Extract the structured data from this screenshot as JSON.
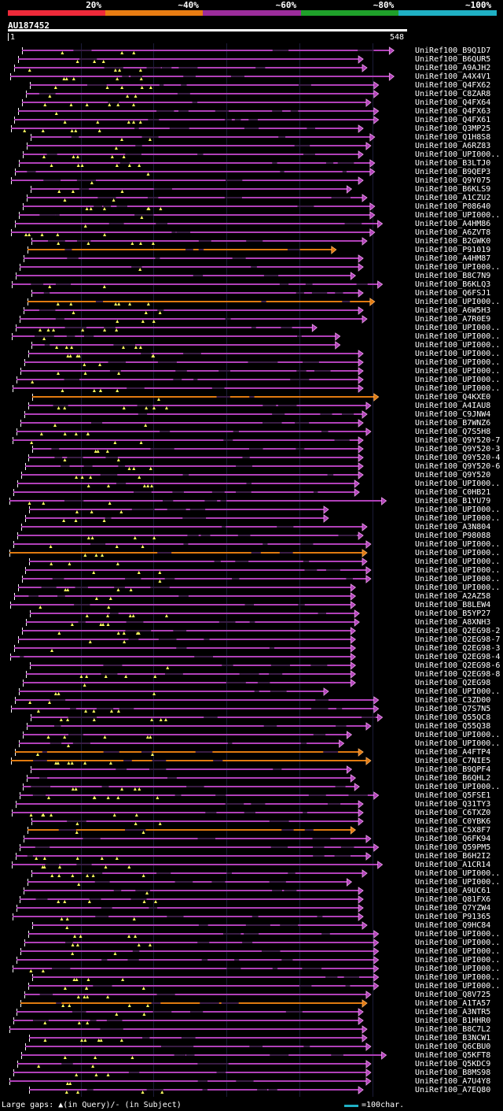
{
  "colors": {
    "orange_hit": "#e07a10",
    "purple_hit": "#b040b8",
    "dark_gap": "#3a1c44",
    "gap_marker": "#ffff60"
  },
  "scale": {
    "segments": [
      {
        "label": "20%",
        "color": "#ee2a3a"
      },
      {
        "label": "~40%",
        "color": "#e87c12"
      },
      {
        "label": "~60%",
        "color": "#9b2c9b"
      },
      {
        "label": "~80%",
        "color": "#1fa02a"
      },
      {
        "label": "~100%",
        "color": "#1fb0c4"
      }
    ]
  },
  "query": {
    "id": "AU187452",
    "start": "1",
    "end": "548",
    "length": 548
  },
  "footer": {
    "legend": "Large gaps: ▲(in Query)/- (in Subject)",
    "scale_label": "=100char."
  },
  "hits": [
    {
      "label": "UniRef100_B9Q1D7",
      "end": 0.99,
      "c": "p"
    },
    {
      "label": "UniRef100_B6QUR5",
      "end": 0.91,
      "c": "p"
    },
    {
      "label": "UniRef100_A9AJH2",
      "end": 0.92,
      "c": "p"
    },
    {
      "label": "UniRef100_A4X4V1",
      "end": 0.99,
      "c": "p"
    },
    {
      "label": "UniRef100_Q4FX62",
      "end": 0.95,
      "c": "p"
    },
    {
      "label": "UniRef100_C8ZAR8",
      "end": 0.95,
      "c": "p"
    },
    {
      "label": "UniRef100_Q4FX64",
      "end": 0.93,
      "c": "p"
    },
    {
      "label": "UniRef100_Q4FX63",
      "end": 0.95,
      "c": "p"
    },
    {
      "label": "UniRef100_Q4FX61",
      "end": 0.95,
      "c": "p"
    },
    {
      "label": "UniRef100_Q3MP25",
      "end": 0.91,
      "c": "p"
    },
    {
      "label": "UniRef100_Q1H8S8",
      "end": 0.94,
      "c": "p"
    },
    {
      "label": "UniRef100_A6RZ83",
      "end": 0.93,
      "c": "p"
    },
    {
      "label": "UniRef100_UPI000..",
      "end": 0.91,
      "c": "p"
    },
    {
      "label": "UniRef100_B3LTJ0",
      "end": 0.94,
      "c": "p"
    },
    {
      "label": "UniRef100_B9QEP3",
      "end": 0.94,
      "c": "p"
    },
    {
      "label": "UniRef100_Q9Y075",
      "end": 0.91,
      "c": "p"
    },
    {
      "label": "UniRef100_B6KLS9",
      "end": 0.88,
      "c": "p"
    },
    {
      "label": "UniRef100_A1CZU2",
      "end": 0.92,
      "c": "p"
    },
    {
      "label": "UniRef100_P08640",
      "end": 0.94,
      "c": "p"
    },
    {
      "label": "UniRef100_UPI000..",
      "end": 0.94,
      "c": "p"
    },
    {
      "label": "UniRef100_A4HM86",
      "end": 0.96,
      "c": "p"
    },
    {
      "label": "UniRef100_A6ZVT8",
      "end": 0.94,
      "c": "p"
    },
    {
      "label": "UniRef100_B2GWK0",
      "end": 0.92,
      "c": "p"
    },
    {
      "label": "UniRef100_P91019",
      "end": 0.84,
      "c": "o"
    },
    {
      "label": "UniRef100_A4HM87",
      "end": 0.91,
      "c": "p"
    },
    {
      "label": "UniRef100_UPI000..",
      "end": 0.91,
      "c": "p"
    },
    {
      "label": "UniRef100_B8C7N9",
      "end": 0.89,
      "c": "p"
    },
    {
      "label": "UniRef100_B6KLQ3",
      "end": 0.96,
      "c": "p"
    },
    {
      "label": "UniRef100_Q6FSJ1",
      "end": 0.91,
      "c": "p"
    },
    {
      "label": "UniRef100_UPI000..",
      "end": 0.94,
      "c": "o"
    },
    {
      "label": "UniRef100_A6W5H3",
      "end": 0.91,
      "c": "p"
    },
    {
      "label": "UniRef100_A7R0E9",
      "end": 0.92,
      "c": "p"
    },
    {
      "label": "UniRef100_UPI000..",
      "end": 0.79,
      "c": "p"
    },
    {
      "label": "UniRef100_UPI000..",
      "end": 0.85,
      "c": "p"
    },
    {
      "label": "UniRef100_UPI000..",
      "end": 0.85,
      "c": "p"
    },
    {
      "label": "UniRef100_UPI000..",
      "end": 0.91,
      "c": "p"
    },
    {
      "label": "UniRef100_UPI000..",
      "end": 0.91,
      "c": "p"
    },
    {
      "label": "UniRef100_UPI000..",
      "end": 0.91,
      "c": "p"
    },
    {
      "label": "UniRef100_UPI000..",
      "end": 0.91,
      "c": "p"
    },
    {
      "label": "UniRef100_UPI000..",
      "end": 0.91,
      "c": "p"
    },
    {
      "label": "UniRef100_Q4KXE0",
      "end": 0.95,
      "c": "o"
    },
    {
      "label": "UniRef100_A4IAU8",
      "end": 0.93,
      "c": "p"
    },
    {
      "label": "UniRef100_C9JNW4",
      "end": 0.92,
      "c": "p"
    },
    {
      "label": "UniRef100_B7WNZ6",
      "end": 0.91,
      "c": "p"
    },
    {
      "label": "UniRef100_Q7S5H8",
      "end": 0.93,
      "c": "p"
    },
    {
      "label": "UniRef100_Q9Y520-7",
      "end": 0.91,
      "c": "p"
    },
    {
      "label": "UniRef100_Q9Y520-3",
      "end": 0.91,
      "c": "p"
    },
    {
      "label": "UniRef100_Q9Y520-4",
      "end": 0.91,
      "c": "p"
    },
    {
      "label": "UniRef100_Q9Y520-6",
      "end": 0.91,
      "c": "p"
    },
    {
      "label": "UniRef100_Q9Y520",
      "end": 0.91,
      "c": "p"
    },
    {
      "label": "UniRef100_UPI000..",
      "end": 0.9,
      "c": "p"
    },
    {
      "label": "UniRef100_C0HB21",
      "end": 0.9,
      "c": "p"
    },
    {
      "label": "UniRef100_B1YU79",
      "end": 0.97,
      "c": "p"
    },
    {
      "label": "UniRef100_UPI000..",
      "end": 0.82,
      "c": "p"
    },
    {
      "label": "UniRef100_UPI000..",
      "end": 0.82,
      "c": "p"
    },
    {
      "label": "UniRef100_A3N804",
      "end": 0.92,
      "c": "p"
    },
    {
      "label": "UniRef100_P98088",
      "end": 0.91,
      "c": "p"
    },
    {
      "label": "UniRef100_UPI000..",
      "end": 0.93,
      "c": "p"
    },
    {
      "label": "UniRef100_UPI000..",
      "end": 0.92,
      "c": "o"
    },
    {
      "label": "UniRef100_UPI000..",
      "end": 0.92,
      "c": "p"
    },
    {
      "label": "UniRef100_UPI000..",
      "end": 0.93,
      "c": "p"
    },
    {
      "label": "UniRef100_UPI000..",
      "end": 0.93,
      "c": "p"
    },
    {
      "label": "UniRef100_UPI000..",
      "end": 0.89,
      "c": "p"
    },
    {
      "label": "UniRef100_A2AZ58",
      "end": 0.89,
      "c": "p"
    },
    {
      "label": "UniRef100_B8LEW4",
      "end": 0.89,
      "c": "p"
    },
    {
      "label": "UniRef100_B5YP27",
      "end": 0.9,
      "c": "p"
    },
    {
      "label": "UniRef100_A8XNH3",
      "end": 0.9,
      "c": "p"
    },
    {
      "label": "UniRef100_Q2EG98-2",
      "end": 0.89,
      "c": "p"
    },
    {
      "label": "UniRef100_Q2EG98-7",
      "end": 0.89,
      "c": "p"
    },
    {
      "label": "UniRef100_Q2EG98-3",
      "end": 0.89,
      "c": "p"
    },
    {
      "label": "UniRef100_Q2EG98-4",
      "end": 0.89,
      "c": "p"
    },
    {
      "label": "UniRef100_Q2EG98-6",
      "end": 0.89,
      "c": "p"
    },
    {
      "label": "UniRef100_Q2EG98-8",
      "end": 0.89,
      "c": "p"
    },
    {
      "label": "UniRef100_Q2EG98",
      "end": 0.89,
      "c": "p"
    },
    {
      "label": "UniRef100_UPI000..",
      "end": 0.82,
      "c": "p"
    },
    {
      "label": "UniRef100_C3ZD00",
      "end": 0.95,
      "c": "p"
    },
    {
      "label": "UniRef100_Q7S7N5",
      "end": 0.95,
      "c": "p"
    },
    {
      "label": "UniRef100_Q55QC8",
      "end": 0.96,
      "c": "p"
    },
    {
      "label": "UniRef100_Q55Q38",
      "end": 0.93,
      "c": "p"
    },
    {
      "label": "UniRef100_UPI000..",
      "end": 0.88,
      "c": "p"
    },
    {
      "label": "UniRef100_UPI000..",
      "end": 0.86,
      "c": "p"
    },
    {
      "label": "UniRef100_A4FTP4",
      "end": 0.91,
      "c": "o"
    },
    {
      "label": "UniRef100_C7NIE5",
      "end": 0.93,
      "c": "o"
    },
    {
      "label": "UniRef100_B9QPF4",
      "end": 0.88,
      "c": "p"
    },
    {
      "label": "UniRef100_B6QHL2",
      "end": 0.89,
      "c": "p"
    },
    {
      "label": "UniRef100_UPI000..",
      "end": 0.9,
      "c": "p"
    },
    {
      "label": "UniRef100_Q5FSE1",
      "end": 0.95,
      "c": "p"
    },
    {
      "label": "UniRef100_Q31TY3",
      "end": 0.91,
      "c": "p"
    },
    {
      "label": "UniRef100_C6TXZ0",
      "end": 0.91,
      "c": "p"
    },
    {
      "label": "UniRef100_C0YBK6",
      "end": 0.91,
      "c": "p"
    },
    {
      "label": "UniRef100_C5X8F7",
      "end": 0.89,
      "c": "o"
    },
    {
      "label": "UniRef100_Q6FK94",
      "end": 0.93,
      "c": "p"
    },
    {
      "label": "UniRef100_Q59PM5",
      "end": 0.95,
      "c": "p"
    },
    {
      "label": "UniRef100_B6H2I2",
      "end": 0.93,
      "c": "p"
    },
    {
      "label": "UniRef100_A1CR14",
      "end": 0.96,
      "c": "p"
    },
    {
      "label": "UniRef100_UPI000..",
      "end": 0.92,
      "c": "p"
    },
    {
      "label": "UniRef100_UPI000..",
      "end": 0.88,
      "c": "p"
    },
    {
      "label": "UniRef100_A9UC61",
      "end": 0.91,
      "c": "p"
    },
    {
      "label": "UniRef100_Q81FX6",
      "end": 0.91,
      "c": "p"
    },
    {
      "label": "UniRef100_Q7YZW4",
      "end": 0.91,
      "c": "p"
    },
    {
      "label": "UniRef100_P91365",
      "end": 0.91,
      "c": "p"
    },
    {
      "label": "UniRef100_Q9HC84",
      "end": 0.92,
      "c": "p"
    },
    {
      "label": "UniRef100_UPI000..",
      "end": 0.95,
      "c": "p"
    },
    {
      "label": "UniRef100_UPI000..",
      "end": 0.95,
      "c": "p"
    },
    {
      "label": "UniRef100_UPI000..",
      "end": 0.95,
      "c": "p"
    },
    {
      "label": "UniRef100_UPI000..",
      "end": 0.95,
      "c": "p"
    },
    {
      "label": "UniRef100_UPI000..",
      "end": 0.95,
      "c": "p"
    },
    {
      "label": "UniRef100_UPI000..",
      "end": 0.95,
      "c": "p"
    },
    {
      "label": "UniRef100_UPI000..",
      "end": 0.95,
      "c": "p"
    },
    {
      "label": "UniRef100_Q8V725",
      "end": 0.93,
      "c": "p"
    },
    {
      "label": "UniRef100_A1TA57",
      "end": 0.92,
      "c": "o"
    },
    {
      "label": "UniRef100_A3NTR5",
      "end": 0.91,
      "c": "p"
    },
    {
      "label": "UniRef100_B1HHR0",
      "end": 0.91,
      "c": "p"
    },
    {
      "label": "UniRef100_B8C7L2",
      "end": 0.92,
      "c": "p"
    },
    {
      "label": "UniRef100_B3NCW1",
      "end": 0.92,
      "c": "p"
    },
    {
      "label": "UniRef100_Q6CBU0",
      "end": 0.93,
      "c": "p"
    },
    {
      "label": "UniRef100_Q5KFT8",
      "end": 0.97,
      "c": "p"
    },
    {
      "label": "UniRef100_Q5KDC9",
      "end": 0.93,
      "c": "p"
    },
    {
      "label": "UniRef100_B8MS98",
      "end": 0.93,
      "c": "p"
    },
    {
      "label": "UniRef100_A7U4Y8",
      "end": 0.93,
      "c": "p"
    },
    {
      "label": "UniRef100_A7EQ80",
      "end": 0.91,
      "c": "p"
    }
  ]
}
